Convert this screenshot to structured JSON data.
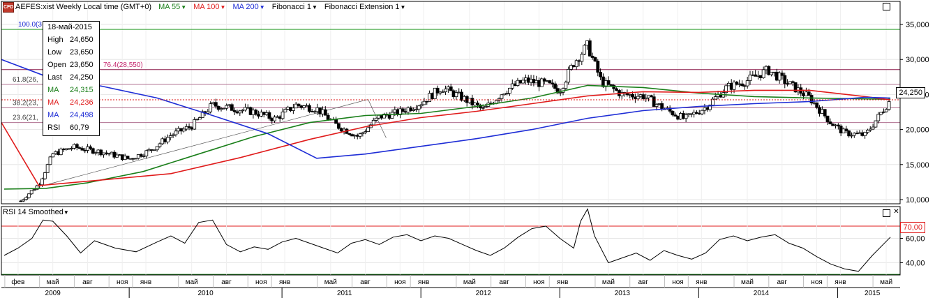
{
  "toolbar": {
    "symbol_badge": "CFD",
    "symbol": "AEFES:xist Weekly Local time (GMT+0)",
    "ma55": "MA 55",
    "ma100": "MA 100",
    "ma200": "MA 200",
    "fib": "Fibonacci 1",
    "fibext": "Fibonacci Extension 1"
  },
  "infobox": {
    "date": "18-май-2015",
    "rows": [
      {
        "k": "High",
        "v": "24,650",
        "color": "#000000"
      },
      {
        "k": "Low",
        "v": "23,650",
        "color": "#000000"
      },
      {
        "k": "Open",
        "v": "23,650",
        "color": "#000000"
      },
      {
        "k": "Last",
        "v": "24,250",
        "color": "#000000"
      },
      {
        "k": "MA",
        "v": "24,315",
        "color": "#1a7f1a"
      },
      {
        "k": "MA",
        "v": "24,236",
        "color": "#e01b1b"
      },
      {
        "k": "MA",
        "v": "24,498",
        "color": "#1e2dd6"
      },
      {
        "k": "RSI",
        "v": "60,79",
        "color": "#000000"
      }
    ]
  },
  "rsi_panel": {
    "title": "RSI 14 Smoothed",
    "level_label": "70,00"
  },
  "price_tag": "24,250",
  "colors": {
    "ma55": "#1a7f1a",
    "ma100": "#e01b1b",
    "ma200": "#1e2dd6",
    "fib": "#c4236b"
  },
  "chart_data": [
    {
      "type": "candlestick",
      "title": "AEFES:xist Weekly Local time (GMT+0)",
      "y_ticks": [
        "10,000",
        "15,000",
        "20,000",
        "25,000",
        "30,000",
        "35,000"
      ],
      "ylim": [
        9400,
        36500
      ],
      "x_ticks": [
        "фев",
        "май",
        "авг",
        "ноя",
        "янв",
        "май",
        "авг",
        "ноя",
        "янв",
        "май",
        "авг",
        "ноя",
        "янв",
        "май",
        "авг",
        "ноя",
        "янв",
        "май",
        "авг",
        "ноя",
        "янв",
        "май",
        "авг",
        "ноя",
        "янв",
        "май"
      ],
      "x_years": [
        "2009",
        "2010",
        "2011",
        "2012",
        "2013",
        "2014",
        "2015"
      ],
      "fib_levels": [
        {
          "label": "100.0(3",
          "value": 34300
        },
        {
          "label": "76.4(28,550)",
          "value": 28550
        },
        {
          "label": "61.8(26,",
          "value": 26450
        },
        {
          "label": "38.2(23,",
          "value": 23100
        },
        {
          "label": "23.6(21,",
          "value": 21000
        }
      ],
      "series": [
        {
          "name": "Price",
          "x": [
            2009.12,
            2009.25,
            2009.35,
            2009.5,
            2009.7,
            2009.9,
            2010.05,
            2010.2,
            2010.35,
            2010.5,
            2010.65,
            2010.8,
            2010.95,
            2011.1,
            2011.25,
            2011.4,
            2011.55,
            2011.7,
            2011.85,
            2012.0,
            2012.15,
            2012.3,
            2012.45,
            2012.6,
            2012.75,
            2012.9,
            2013.0,
            2013.1,
            2013.2,
            2013.3,
            2013.45,
            2013.6,
            2013.75,
            2013.9,
            2014.05,
            2014.2,
            2014.35,
            2014.5,
            2014.65,
            2014.8,
            2014.95,
            2015.05,
            2015.2,
            2015.38
          ],
          "values": [
            9800,
            12200,
            16500,
            17500,
            16800,
            15800,
            17000,
            19200,
            20500,
            23500,
            23000,
            22500,
            21500,
            23500,
            23000,
            20500,
            19000,
            21800,
            22500,
            23800,
            26000,
            24500,
            22800,
            25500,
            27000,
            26500,
            25600,
            29500,
            32000,
            26800,
            25000,
            24800,
            23000,
            21500,
            23200,
            26000,
            27000,
            28500,
            26500,
            24500,
            21000,
            19500,
            19200,
            24250
          ]
        },
        {
          "name": "MA 55",
          "x": [
            2009.0,
            2009.3,
            2009.6,
            2010.0,
            2010.4,
            2010.8,
            2011.2,
            2011.6,
            2012.0,
            2012.4,
            2012.8,
            2013.2,
            2013.6,
            2014.0,
            2014.4,
            2014.8,
            2015.38
          ],
          "values": [
            11500,
            11600,
            12400,
            14000,
            16500,
            19000,
            21000,
            22000,
            22300,
            23300,
            24500,
            26300,
            26000,
            25200,
            24700,
            24500,
            24315
          ]
        },
        {
          "name": "MA 100",
          "x": [
            2008.98,
            2009.25,
            2009.7,
            2010.2,
            2010.7,
            2011.2,
            2011.6,
            2012.0,
            2012.4,
            2012.8,
            2013.2,
            2013.6,
            2014.0,
            2014.4,
            2014.8,
            2015.2,
            2015.38
          ],
          "values": [
            21000,
            12000,
            12800,
            13700,
            16000,
            18600,
            20400,
            21700,
            22600,
            23700,
            24800,
            25400,
            25300,
            25600,
            25600,
            24700,
            24236
          ]
        },
        {
          "name": "MA 200",
          "x": [
            2008.98,
            2009.3,
            2009.7,
            2010.1,
            2010.5,
            2010.9,
            2011.25,
            2011.6,
            2012.0,
            2012.4,
            2012.8,
            2013.2,
            2013.6,
            2014.0,
            2014.4,
            2014.8,
            2015.2,
            2015.38
          ],
          "values": [
            30000,
            27600,
            26200,
            24500,
            22000,
            19400,
            15900,
            16500,
            17600,
            18700,
            20000,
            21600,
            22700,
            23300,
            23700,
            24000,
            24600,
            24498
          ]
        }
      ]
    },
    {
      "type": "line",
      "title": "RSI 14 Smoothed",
      "y_ticks": [
        "40,00",
        "60,00",
        "70,00"
      ],
      "ylim": [
        30,
        86
      ],
      "series": [
        {
          "name": "RSI 14 Smoothed",
          "x": [
            2009.0,
            2009.1,
            2009.2,
            2009.28,
            2009.35,
            2009.45,
            2009.55,
            2009.65,
            2009.8,
            2009.95,
            2010.1,
            2010.2,
            2010.3,
            2010.4,
            2010.5,
            2010.6,
            2010.7,
            2010.8,
            2010.9,
            2011.0,
            2011.1,
            2011.2,
            2011.3,
            2011.4,
            2011.5,
            2011.6,
            2011.7,
            2011.8,
            2011.9,
            2012.0,
            2012.1,
            2012.2,
            2012.3,
            2012.4,
            2012.5,
            2012.6,
            2012.7,
            2012.8,
            2012.9,
            2013.0,
            2013.1,
            2013.15,
            2013.2,
            2013.25,
            2013.35,
            2013.45,
            2013.55,
            2013.65,
            2013.75,
            2013.85,
            2013.95,
            2014.05,
            2014.15,
            2014.25,
            2014.35,
            2014.45,
            2014.55,
            2014.65,
            2014.75,
            2014.85,
            2014.95,
            2015.05,
            2015.15,
            2015.25,
            2015.38
          ],
          "values": [
            46,
            52,
            60,
            75,
            74,
            62,
            48,
            58,
            52,
            49,
            57,
            62,
            56,
            73,
            75,
            55,
            49,
            53,
            51,
            57,
            60,
            56,
            52,
            48,
            56,
            59,
            55,
            61,
            63,
            58,
            62,
            60,
            55,
            50,
            46,
            52,
            61,
            68,
            70,
            60,
            52,
            74,
            84,
            62,
            40,
            44,
            48,
            42,
            50,
            46,
            43,
            48,
            59,
            62,
            58,
            61,
            63,
            56,
            52,
            45,
            39,
            35,
            33,
            46,
            61
          ]
        }
      ]
    }
  ]
}
